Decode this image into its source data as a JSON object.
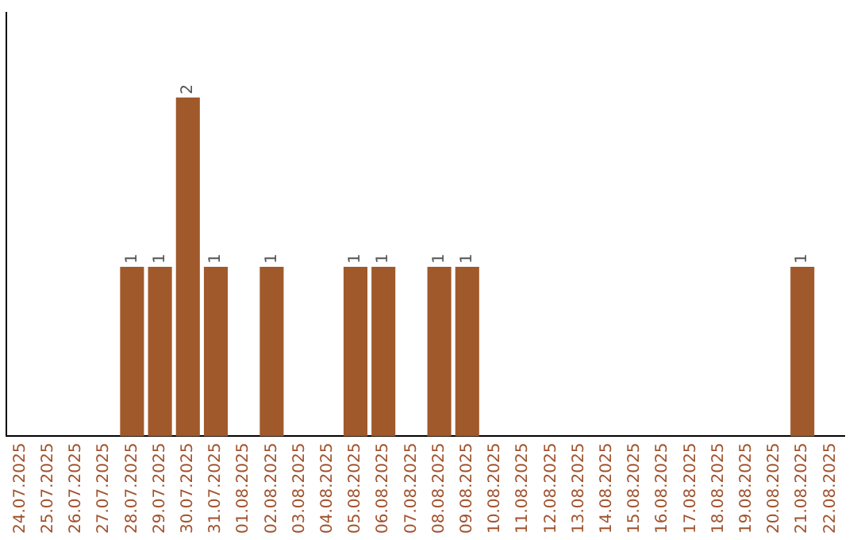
{
  "chart_data": {
    "type": "bar",
    "categories": [
      "24.07.2025",
      "25.07.2025",
      "26.07.2025",
      "27.07.2025",
      "28.07.2025",
      "29.07.2025",
      "30.07.2025",
      "31.07.2025",
      "01.08.2025",
      "02.08.2025",
      "03.08.2025",
      "04.08.2025",
      "05.08.2025",
      "06.08.2025",
      "07.08.2025",
      "08.08.2025",
      "09.08.2025",
      "10.08.2025",
      "11.08.2025",
      "12.08.2025",
      "13.08.2025",
      "14.08.2025",
      "15.08.2025",
      "16.08.2025",
      "17.08.2025",
      "18.08.2025",
      "19.08.2025",
      "20.08.2025",
      "21.08.2025",
      "22.08.2025"
    ],
    "values": [
      0,
      0,
      0,
      0,
      1,
      1,
      2,
      1,
      0,
      1,
      0,
      0,
      1,
      1,
      0,
      1,
      1,
      0,
      0,
      0,
      0,
      0,
      0,
      0,
      0,
      0,
      0,
      0,
      1,
      0
    ],
    "value_labels": [
      null,
      null,
      null,
      null,
      "1",
      "1",
      "2",
      "1",
      null,
      "1",
      null,
      null,
      "1",
      "1",
      null,
      "1",
      "1",
      null,
      null,
      null,
      null,
      null,
      null,
      null,
      null,
      null,
      null,
      null,
      "1",
      null
    ],
    "color": "#a0592b",
    "tick_labels": "x",
    "grid": false,
    "legend": false
  }
}
